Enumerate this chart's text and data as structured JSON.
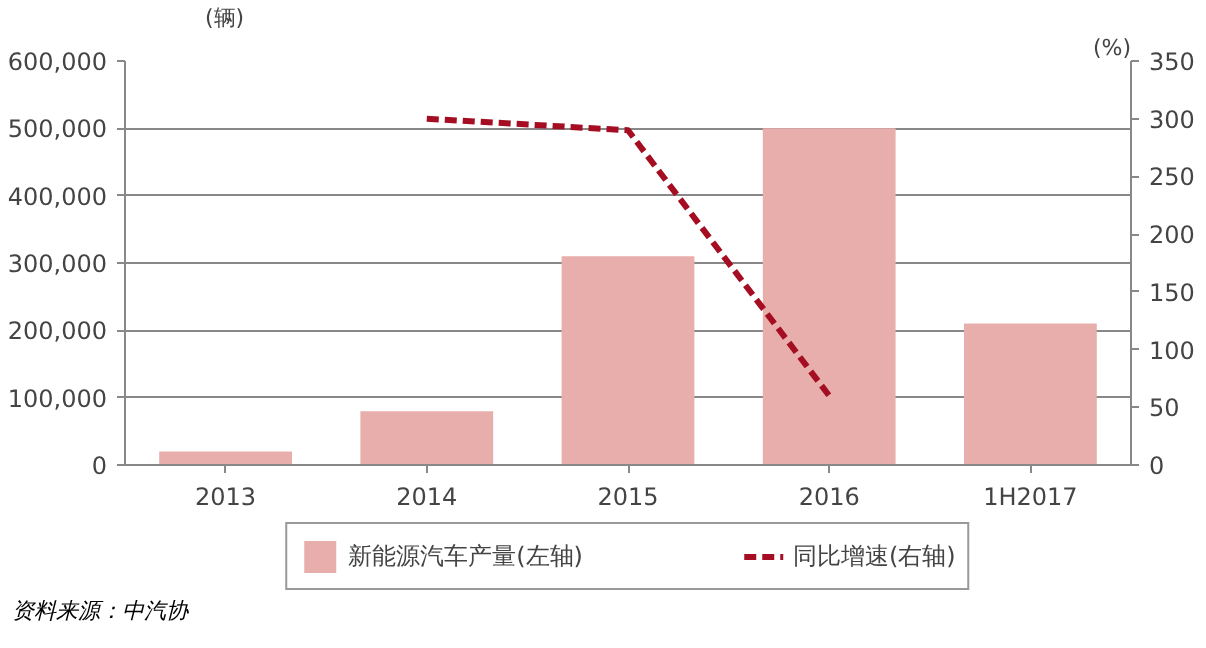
{
  "chart_data": {
    "type": "bar",
    "categories": [
      "2013",
      "2014",
      "2015",
      "2016",
      "1H2017"
    ],
    "series": [
      {
        "name": "新能源汽车产量(左轴)",
        "type": "bar",
        "color": "#e8aeab",
        "values": [
          20000,
          80000,
          310000,
          500000,
          210000
        ]
      },
      {
        "name": "同比增速(右轴)",
        "type": "line",
        "axis": "y2",
        "color": "#a50d22",
        "line_style": "dashed",
        "values": [
          null,
          300,
          290,
          60,
          null
        ]
      }
    ],
    "ylabel": "(辆)",
    "y2label": "(%)",
    "ylim": [
      0,
      600000
    ],
    "yticks": [
      {
        "value": 0,
        "label": "0"
      },
      {
        "value": 100000,
        "label": "100,000"
      },
      {
        "value": 200000,
        "label": "200,000"
      },
      {
        "value": 300000,
        "label": "300,000"
      },
      {
        "value": 400000,
        "label": "400,000"
      },
      {
        "value": 500000,
        "label": "500,000"
      },
      {
        "value": 600000,
        "label": "600,000"
      }
    ],
    "y2lim": [
      0,
      350
    ],
    "y2ticks": [
      0,
      50,
      100,
      150,
      200,
      250,
      300,
      350
    ],
    "grid": "y",
    "legend": "bottom",
    "annotations": [
      "资料来源：中汽协"
    ]
  }
}
